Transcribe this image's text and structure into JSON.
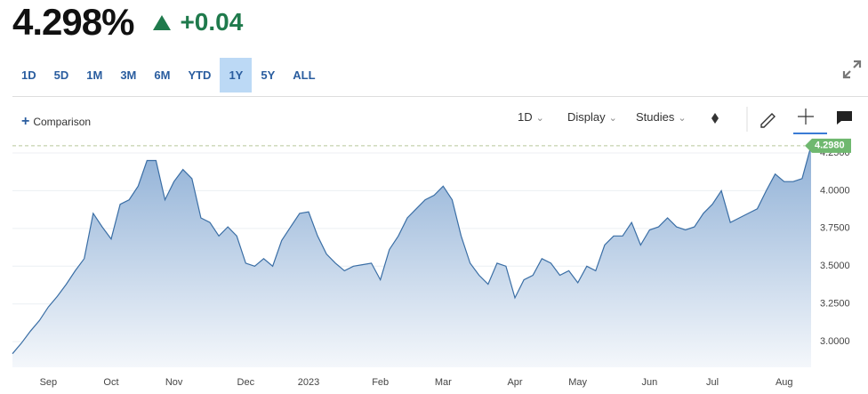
{
  "header": {
    "price": "4.298%",
    "change": "+0.04"
  },
  "ranges": {
    "items": [
      "1D",
      "5D",
      "1M",
      "3M",
      "6M",
      "YTD",
      "1Y",
      "5Y",
      "ALL"
    ],
    "active": 6
  },
  "toolbar": {
    "comparison": "Comparison",
    "interval": "1D",
    "display": "Display",
    "studies": "Studies"
  },
  "chart_data": {
    "type": "area",
    "color": "#3a6ea5",
    "categories": [
      null,
      null,
      null,
      null,
      "Sep",
      null,
      null,
      null,
      null,
      null,
      null,
      "Oct",
      null,
      null,
      null,
      null,
      null,
      null,
      "Nov",
      null,
      null,
      null,
      null,
      null,
      null,
      null,
      "Dec",
      null,
      null,
      null,
      null,
      null,
      null,
      "2023",
      null,
      null,
      null,
      null,
      null,
      null,
      null,
      "Feb",
      null,
      null,
      null,
      null,
      null,
      null,
      "Mar",
      null,
      null,
      null,
      null,
      null,
      null,
      null,
      "Apr",
      null,
      null,
      null,
      null,
      null,
      null,
      "May",
      null,
      null,
      null,
      null,
      null,
      null,
      null,
      "Jun",
      null,
      null,
      null,
      null,
      null,
      null,
      "Jul",
      null,
      null,
      null,
      null,
      null,
      null,
      null,
      "Aug",
      null,
      null,
      null
    ],
    "values": [
      2.92,
      2.99,
      3.07,
      3.14,
      3.23,
      3.3,
      3.38,
      3.47,
      3.55,
      3.85,
      3.76,
      3.68,
      3.91,
      3.94,
      4.03,
      4.2,
      4.2,
      3.94,
      4.06,
      4.14,
      4.08,
      3.82,
      3.79,
      3.7,
      3.76,
      3.7,
      3.52,
      3.5,
      3.55,
      3.5,
      3.67,
      3.76,
      3.85,
      3.86,
      3.7,
      3.58,
      3.52,
      3.47,
      3.5,
      3.51,
      3.52,
      3.41,
      3.61,
      3.7,
      3.82,
      3.88,
      3.94,
      3.97,
      4.03,
      3.94,
      3.7,
      3.52,
      3.44,
      3.38,
      3.52,
      3.5,
      3.29,
      3.41,
      3.44,
      3.55,
      3.52,
      3.44,
      3.47,
      3.39,
      3.5,
      3.47,
      3.64,
      3.7,
      3.7,
      3.79,
      3.64,
      3.74,
      3.76,
      3.82,
      3.76,
      3.74,
      3.76,
      3.85,
      3.91,
      4.0,
      3.79,
      3.82,
      3.85,
      3.88,
      4.0,
      4.11,
      4.06,
      4.06,
      4.08,
      4.298
    ],
    "last_price": {
      "value": 4.298,
      "label": "4.2980"
    },
    "ylim": [
      2.83,
      4.35
    ],
    "yticks": [
      {
        "value": 3,
        "label": "3.0000"
      },
      {
        "value": 3.25,
        "label": "3.2500"
      },
      {
        "value": 3.5,
        "label": "3.5000"
      },
      {
        "value": 3.75,
        "label": "3.7500"
      },
      {
        "value": 4,
        "label": "4.0000"
      },
      {
        "value": 4.25,
        "label": "4.2500"
      }
    ],
    "grid": true
  }
}
